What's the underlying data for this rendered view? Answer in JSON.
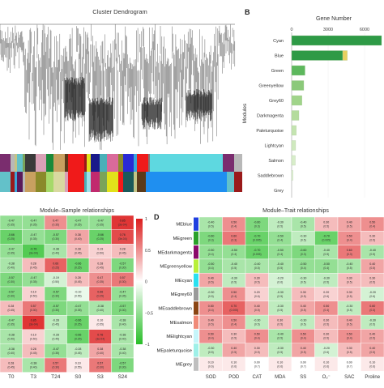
{
  "panelA": {
    "title": "Cluster Dendrogram",
    "colors": [
      "#7a2d6e",
      "#b8b8b8",
      "#c4c486",
      "#63c1c9",
      "#7aa35a",
      "#3a3a3a",
      "#d9a0b6",
      "#1a8a3a",
      "#c8a060",
      "#5b3a1a",
      "#9a1a1a",
      "#e2e21a",
      "#1a1a8a",
      "#4ab0b8",
      "#d96a9a",
      "#8a8a2a",
      "#2a2ad4",
      "#3aa6d9",
      "#f01a1a",
      "#7a7a7a",
      "#a0e0e8",
      "#1f8ff0",
      "#a6d96a",
      "#e8c000",
      "#5a1a5a",
      "#1a5a5a",
      "#d0d0d0",
      "#c12a6e",
      "#86c0e0",
      "#d9d9a0"
    ]
  },
  "panelB": {
    "label": "B",
    "chart_data": {
      "type": "bar",
      "title": "Gene Number",
      "ylabel": "Modules",
      "xlim": [
        0,
        7600
      ],
      "ticks": [
        0,
        3000,
        6000
      ],
      "categories": [
        "Cyan",
        "Blue",
        "Green",
        "Greenyellow",
        "Grey60",
        "Darkmagenta",
        "Paleturquoise",
        "Lightcyan",
        "Salmon",
        "Saddlebrown",
        "Grey"
      ],
      "series": [
        {
          "values": [
            7400,
            4200,
            1100,
            1000,
            850,
            600,
            380,
            330,
            300,
            120,
            0
          ]
        },
        {
          "values": [
            0,
            380,
            0,
            0,
            0,
            0,
            0,
            0,
            0,
            0,
            0
          ]
        }
      ]
    }
  },
  "panelC": {
    "title": "Module–Sample relationships",
    "legend_ticks": [
      "1",
      "0.5",
      "0",
      "−0.5",
      "−1"
    ],
    "xlabels": [
      "T0",
      "T3",
      "T24",
      "S0",
      "S3",
      "S24"
    ],
    "chart_data": {
      "type": "heatmap",
      "rows": 11,
      "values": [
        [
          -0.5,
          -0.5,
          0.5,
          -0.5,
          -0.5,
          0.9
        ],
        [
          -0.7,
          -0.5,
          -0.6,
          0.4,
          -0.7,
          0.8
        ],
        [
          -0.5,
          -0.8,
          -0.4,
          0.3,
          0.2,
          0.3
        ],
        [
          -0.4,
          0.3,
          0.7,
          -0.7,
          0.3,
          -0.6
        ],
        [
          -0.6,
          -0.5,
          -0.2,
          0.3,
          0.5,
          0.6
        ],
        [
          -0.6,
          0.2,
          -0.6,
          -0.1,
          0.7,
          -0.5
        ],
        [
          0.3,
          0.6,
          -0.6,
          -0.5,
          -0.4,
          -0.6
        ],
        [
          -0.5,
          0.9,
          -0.3,
          -0.7,
          0.1,
          -0.4
        ],
        [
          -0.4,
          0.2,
          -0.3,
          -0.7,
          0.8,
          -0.4
        ],
        [
          -0.4,
          0.3,
          -0.5,
          -0.3,
          0.4,
          -0.4
        ],
        [
          0.3,
          -0.4,
          0.6,
          0.1,
          0.6,
          -0.6
        ]
      ]
    }
  },
  "panelD": {
    "label": "D",
    "title": "Module–Trait relationships",
    "modules": [
      {
        "name": "MEblue",
        "color": "#1f3fe0"
      },
      {
        "name": "MEgreen",
        "color": "#2aa12a"
      },
      {
        "name": "MEdarkmagenta",
        "color": "#8b0a6a"
      },
      {
        "name": "MEgreenyellow",
        "color": "#b8f03a"
      },
      {
        "name": "MEcyan",
        "color": "#2ae0f0"
      },
      {
        "name": "MEgrey60",
        "color": "#9a9a9a"
      },
      {
        "name": "MEsaddlebrown",
        "color": "#8b4513"
      },
      {
        "name": "MEsalmon",
        "color": "#f08a78"
      },
      {
        "name": "MElightcyan",
        "color": "#c6f5fa"
      },
      {
        "name": "MEpaleturquoise",
        "color": "#9ef0e8"
      },
      {
        "name": "MEgrey",
        "color": "#bfbfbf"
      }
    ],
    "traits": [
      "SOD",
      "POD",
      "CAT",
      "MDA",
      "SS",
      "O₂⁻",
      "SAC",
      "Proline"
    ],
    "chart_data": {
      "type": "heatmap",
      "values": [
        [
          -0.4,
          0.5,
          -0.6,
          -0.3,
          -0.4,
          0.3,
          0.4,
          0.5
        ],
        [
          -0.6,
          0.6,
          -0.7,
          -0.5,
          -0.3,
          -0.7,
          0.5,
          0.3
        ],
        [
          -0.5,
          -0.5,
          -0.7,
          -0.5,
          -0.6,
          -0.4,
          0.6,
          -0.4
        ],
        [
          -0.5,
          -0.4,
          -0.4,
          -0.4,
          -0.5,
          -0.5,
          -0.4,
          0.4
        ],
        [
          0.4,
          -0.3,
          0.3,
          -0.2,
          -0.3,
          -0.3,
          0.3,
          0.3
        ],
        [
          -0.3,
          0.5,
          0.2,
          -0.3,
          0.3,
          0.2,
          0.3,
          -0.2
        ],
        [
          0.5,
          0.7,
          0.4,
          -0.3,
          0.4,
          0.5,
          -0.3,
          0.6
        ],
        [
          0.4,
          0.5,
          -0.3,
          0.3,
          -0.3,
          0.3,
          0.4,
          -0.3
        ],
        [
          0.5,
          0.3,
          0.5,
          -0.4,
          0.5,
          0.3,
          0.5,
          0.4
        ],
        [
          -0.3,
          0.4,
          0.3,
          -0.3,
          0.4,
          -0.2,
          0.3,
          0.4
        ],
        [
          0.1,
          0.1,
          0.0,
          0.1,
          0.0,
          0.1,
          0.0,
          0.1
        ]
      ]
    }
  }
}
